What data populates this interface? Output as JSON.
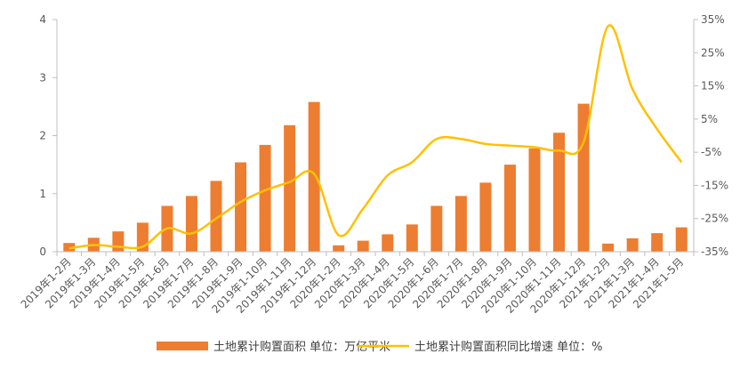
{
  "chart_data": {
    "type": "bar",
    "categories": [
      "2019年1-2月",
      "2019年1-3月",
      "2019年1-4月",
      "2019年1-5月",
      "2019年1-6月",
      "2019年1-7月",
      "2019年1-8月",
      "2019年1-9月",
      "2019年1-10月",
      "2019年1-11月",
      "2019年1-12月",
      "2020年1-2月",
      "2020年1-3月",
      "2020年1-4月",
      "2020年1-5月",
      "2020年1-6月",
      "2020年1-7月",
      "2020年1-8月",
      "2020年1-9月",
      "2020年1-10月",
      "2020年1-11月",
      "2020年1-12月",
      "2021年1-2月",
      "2021年1-3月",
      "2021年1-4月",
      "2021年1-5月"
    ],
    "series": [
      {
        "name": "土地累计购置面积 单位：万亿平米",
        "type": "bar",
        "axis": "left",
        "color": "#ED7D31",
        "values": [
          0.15,
          0.24,
          0.35,
          0.5,
          0.79,
          0.96,
          1.22,
          1.54,
          1.84,
          2.18,
          2.58,
          0.11,
          0.19,
          0.3,
          0.47,
          0.79,
          0.96,
          1.19,
          1.5,
          1.78,
          2.05,
          2.55,
          0.14,
          0.23,
          0.32,
          0.42
        ]
      },
      {
        "name": "土地累计购置面积同比增速 单位：%",
        "type": "line",
        "axis": "right",
        "color": "#FFC000",
        "values": [
          -34,
          -33,
          -33.5,
          -33.5,
          -28,
          -29.5,
          -25,
          -20,
          -16.5,
          -14,
          -11.5,
          -30,
          -22,
          -12,
          -8,
          -1,
          -1,
          -2.5,
          -3,
          -3.5,
          -4.5,
          -2,
          33,
          14,
          2,
          -8
        ]
      }
    ],
    "yaxis_left": {
      "min": 0,
      "max": 4,
      "ticks": [
        "0",
        "1",
        "2",
        "3",
        "4"
      ]
    },
    "yaxis_right": {
      "min": -35,
      "max": 35,
      "ticks": [
        "-35%",
        "-25%",
        "-15%",
        "-5%",
        "5%",
        "15%",
        "25%",
        "35%"
      ]
    },
    "title": "",
    "grid": false,
    "legend": {
      "placement": "bottom"
    }
  }
}
